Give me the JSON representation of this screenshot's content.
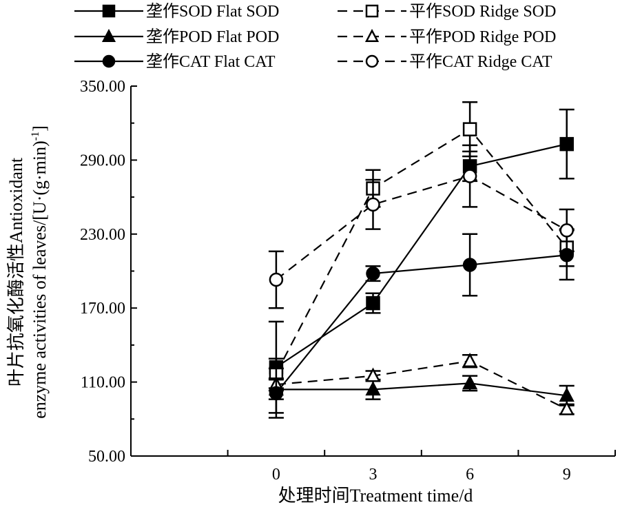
{
  "chart_data": {
    "type": "line",
    "x": [
      0,
      3,
      6,
      9
    ],
    "xlim": [
      -4.5,
      10.5
    ],
    "ylim": [
      50,
      350
    ],
    "xticks": [
      0,
      3,
      6,
      9
    ],
    "xtick_labels": [
      "0",
      "3",
      "6",
      "9"
    ],
    "yticks": [
      50,
      110,
      170,
      230,
      290,
      350
    ],
    "ytick_labels": [
      "50.00",
      "110.00",
      "170.00",
      "230.00",
      "290.00",
      "350.00"
    ],
    "xlabel": "处理时间Treatment time/d",
    "ylabel_line1": "叶片抗氧化酶活性Antioxidant",
    "ylabel_line2": "enzyme activities of leaves/[U·(g·min)",
    "ylabel_sup": "-1",
    "ylabel_end": "]",
    "legend_position": "top",
    "series": [
      {
        "name": "垄作SOD Flat SOD",
        "marker": "square",
        "filled": true,
        "dashed": false,
        "values": [
          122,
          174,
          285,
          303
        ],
        "errors": [
          37,
          8,
          12,
          28
        ]
      },
      {
        "name": "平作SOD Ridge SOD",
        "marker": "square",
        "filled": false,
        "dashed": true,
        "values": [
          117,
          267,
          315,
          219
        ],
        "errors": [
          12,
          15,
          22,
          15
        ]
      },
      {
        "name": "垄作POD Flat POD",
        "marker": "triangle",
        "filled": true,
        "dashed": false,
        "values": [
          104,
          104,
          109,
          99
        ],
        "errors": [
          8,
          8,
          6,
          8
        ]
      },
      {
        "name": "平作POD Ridge POD",
        "marker": "triangle",
        "filled": false,
        "dashed": true,
        "values": [
          108,
          115,
          127,
          88
        ],
        "errors": [
          5,
          4,
          5,
          4
        ]
      },
      {
        "name": "垄作CAT Flat CAT",
        "marker": "circle",
        "filled": true,
        "dashed": false,
        "values": [
          101,
          198,
          205,
          213
        ],
        "errors": [
          20,
          6,
          25,
          20
        ]
      },
      {
        "name": "平作CAT Ridge CAT",
        "marker": "circle",
        "filled": false,
        "dashed": true,
        "values": [
          193,
          254,
          277,
          233
        ],
        "errors": [
          23,
          20,
          25,
          17
        ]
      }
    ]
  }
}
